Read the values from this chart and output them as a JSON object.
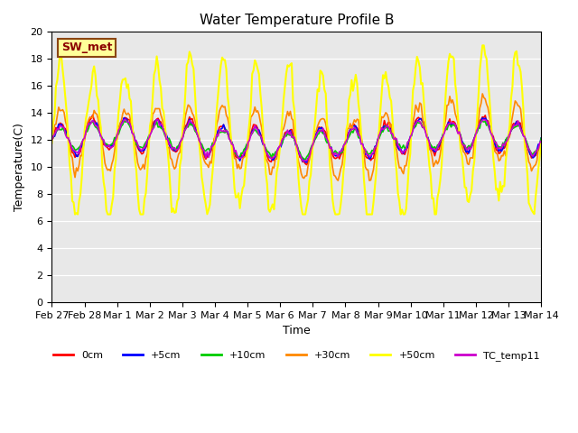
{
  "title": "Water Temperature Profile B",
  "xlabel": "Time",
  "ylabel": "Temperature(C)",
  "ylim": [
    0,
    20
  ],
  "yticks": [
    0,
    2,
    4,
    6,
    8,
    10,
    12,
    14,
    16,
    18,
    20
  ],
  "bg_color": "#e8e8e8",
  "annotation_text": "SW_met",
  "annotation_color": "#8b0000",
  "annotation_bg": "#ffff99",
  "annotation_border": "#8b4513",
  "series_names": [
    "0cm",
    "+5cm",
    "+10cm",
    "+30cm",
    "+50cm",
    "TC_temp11"
  ],
  "series_colors": [
    "#ff0000",
    "#0000ff",
    "#00cc00",
    "#ff8800",
    "#ffff00",
    "#cc00cc"
  ],
  "series_lw": [
    1.2,
    1.2,
    1.2,
    1.2,
    1.5,
    1.2
  ],
  "x_tick_labels": [
    "Feb 27",
    "Feb 28",
    "Mar 1",
    "Mar 2",
    "Mar 3",
    "Mar 4",
    "Mar 5",
    "Mar 6",
    "Mar 7",
    "Mar 8",
    "Mar 9",
    "Mar 10",
    "Mar 11",
    "Mar 12",
    "Mar 13",
    "Mar 14"
  ],
  "n_days": 15,
  "pts_per_day": 24,
  "seed": 42
}
